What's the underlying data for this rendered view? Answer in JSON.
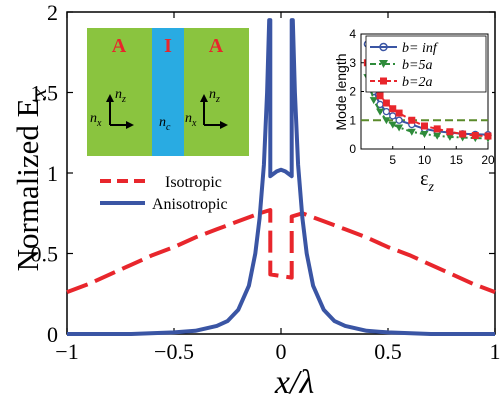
{
  "chart_data": [
    {
      "type": "line",
      "xlabel_main": "x",
      "xlabel_sub": "/λ",
      "ylabel_main": "Normalized E",
      "ylabel_sub": "x",
      "xlim": [
        -1,
        1
      ],
      "ylim": [
        0,
        2
      ],
      "x_ticks": [
        -1,
        -0.5,
        0,
        0.5,
        1
      ],
      "x_tick_labels": [
        "−1",
        "−0.5",
        "0",
        "0.5",
        "1"
      ],
      "y_ticks": [
        0,
        0.5,
        1,
        1.5,
        2
      ],
      "y_tick_labels": [
        "0",
        "0.5",
        "1",
        "1.5",
        "2"
      ],
      "legend_position": "middle-left",
      "series": [
        {
          "name": "Isotropic",
          "color": "#e8262c",
          "style": "dashed",
          "points": [
            [
              -1,
              0.26
            ],
            [
              -0.9,
              0.31
            ],
            [
              -0.8,
              0.37
            ],
            [
              -0.7,
              0.43
            ],
            [
              -0.6,
              0.49
            ],
            [
              -0.5,
              0.54
            ],
            [
              -0.4,
              0.6
            ],
            [
              -0.3,
              0.65
            ],
            [
              -0.2,
              0.7
            ],
            [
              -0.1,
              0.75
            ],
            [
              -0.05,
              0.77
            ],
            [
              -0.05,
              0.37
            ],
            [
              0.05,
              0.35
            ],
            [
              0.05,
              0.73
            ],
            [
              0.1,
              0.75
            ],
            [
              0.2,
              0.7
            ],
            [
              0.3,
              0.65
            ],
            [
              0.4,
              0.6
            ],
            [
              0.5,
              0.54
            ],
            [
              0.6,
              0.49
            ],
            [
              0.7,
              0.43
            ],
            [
              0.8,
              0.37
            ],
            [
              0.9,
              0.31
            ],
            [
              1,
              0.26
            ]
          ]
        },
        {
          "name": "Anisotropic",
          "color": "#3a55a4",
          "style": "solid",
          "points": [
            [
              -1,
              0.0
            ],
            [
              -0.7,
              0.0
            ],
            [
              -0.5,
              0.01
            ],
            [
              -0.4,
              0.02
            ],
            [
              -0.3,
              0.05
            ],
            [
              -0.25,
              0.08
            ],
            [
              -0.2,
              0.15
            ],
            [
              -0.15,
              0.3
            ],
            [
              -0.12,
              0.5
            ],
            [
              -0.1,
              0.72
            ],
            [
              -0.08,
              1.05
            ],
            [
              -0.065,
              1.5
            ],
            [
              -0.055,
              1.95
            ],
            [
              -0.05,
              1.95
            ],
            [
              -0.05,
              0.98
            ],
            [
              -0.02,
              1.01
            ],
            [
              0,
              1.02
            ],
            [
              0.02,
              1.01
            ],
            [
              0.05,
              0.98
            ],
            [
              0.05,
              1.95
            ],
            [
              0.055,
              1.95
            ],
            [
              0.065,
              1.5
            ],
            [
              0.08,
              1.05
            ],
            [
              0.1,
              0.72
            ],
            [
              0.12,
              0.5
            ],
            [
              0.15,
              0.3
            ],
            [
              0.2,
              0.15
            ],
            [
              0.25,
              0.08
            ],
            [
              0.3,
              0.05
            ],
            [
              0.4,
              0.02
            ],
            [
              0.5,
              0.01
            ],
            [
              0.7,
              0.0
            ],
            [
              1,
              0.0
            ]
          ]
        }
      ]
    },
    {
      "type": "line",
      "ylabel": "Mode length",
      "xlabel_main": "ε",
      "xlabel_sub": "z",
      "xlim": [
        0,
        20
      ],
      "ylim": [
        0,
        4
      ],
      "x_ticks": [
        0,
        5,
        10,
        15,
        20
      ],
      "x_tick_labels": [
        "",
        "5",
        "10",
        "15",
        "20"
      ],
      "y_ticks": [
        0,
        1,
        2,
        3,
        4
      ],
      "y_tick_labels": [
        "0",
        "1",
        "2",
        "3",
        "4"
      ],
      "legend_position": "top-right",
      "reference_line": {
        "y": 1.0,
        "color": "#5a8a2a",
        "style": "dashed"
      },
      "series": [
        {
          "name": "b= inf",
          "color": "#3a55a4",
          "marker": "circle",
          "style": "solid",
          "x": [
            1,
            2,
            3,
            4,
            5,
            6,
            8,
            10,
            12,
            14,
            16,
            18,
            20
          ],
          "values": [
            3.65,
            2.0,
            1.55,
            1.3,
            1.15,
            1.0,
            0.85,
            0.7,
            0.62,
            0.57,
            0.53,
            0.51,
            0.5
          ]
        },
        {
          "name": "b=5a",
          "color": "#2e8b3a",
          "marker": "triangle-down",
          "style": "dashdot",
          "x": [
            1,
            2,
            3,
            4,
            5,
            6,
            8,
            10,
            12,
            14,
            16,
            18,
            20
          ],
          "values": [
            2.5,
            1.7,
            1.3,
            1.0,
            0.85,
            0.75,
            0.6,
            0.52,
            0.46,
            0.42,
            0.4,
            0.38,
            0.37
          ]
        },
        {
          "name": "b=2a",
          "color": "#e8262c",
          "marker": "square",
          "style": "dashed",
          "x": [
            1,
            2,
            3,
            4,
            5,
            6,
            8,
            10,
            12,
            14,
            16,
            18,
            20
          ],
          "values": [
            3.0,
            2.2,
            1.85,
            1.6,
            1.4,
            1.25,
            1.0,
            0.8,
            0.7,
            0.6,
            0.52,
            0.47,
            0.45
          ]
        }
      ]
    }
  ],
  "schematic": {
    "left_label": "A",
    "center_label": "I",
    "right_label": "A",
    "nz": "n",
    "nz_sub": "z",
    "nx": "n",
    "nx_sub": "x",
    "nc": "n",
    "nc_sub": "c",
    "green": "#8ac43f",
    "blue": "#29abe2",
    "letter_color": "#e8262c"
  }
}
